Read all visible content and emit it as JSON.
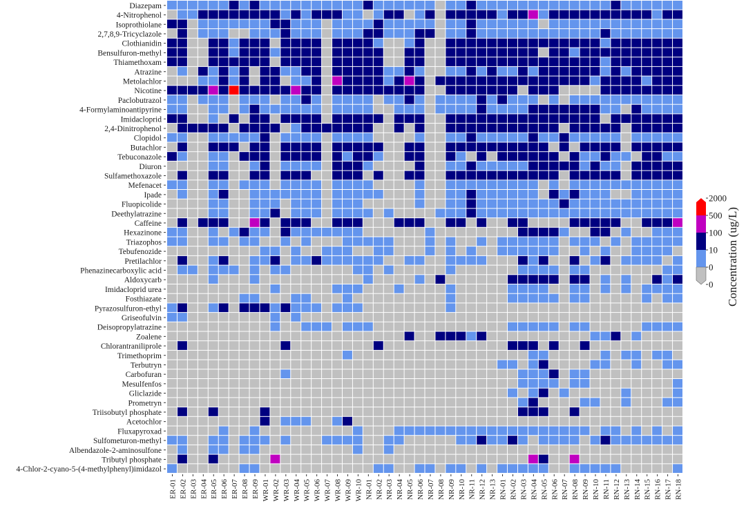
{
  "chart_data": {
    "type": "heatmap",
    "title": "",
    "xlabel": "",
    "ylabel": "",
    "encoding": "each row string gives one level per column: 0 = <=0 (gray), 1 = 0-10, 2 = 10-100, 3 = 100-500, 4 = 500-2000",
    "columns": [
      "ER-01",
      "ER-02",
      "ER-03",
      "ER-04",
      "ER-05",
      "ER-06",
      "ER-07",
      "ER-08",
      "ER-09",
      "WR-01",
      "WR-02",
      "WR-03",
      "WR-04",
      "WR-05",
      "WR-06",
      "WR-07",
      "WR-08",
      "WR-09",
      "WR-10",
      "NR-01",
      "NR-02",
      "NR-03",
      "NR-04",
      "NR-05",
      "NR-06",
      "NR-07",
      "NR-08",
      "NR-09",
      "NR-10",
      "NR-11",
      "NR-12",
      "NR-13",
      "RN-01",
      "RN-02",
      "RN-03",
      "RN-04",
      "RN-05",
      "RN-06",
      "RN-07",
      "RN-08",
      "RN-09",
      "RN-10",
      "RN-11",
      "RN-12",
      "RN-13",
      "RN-14",
      "RN-15",
      "RN-16",
      "RN-17",
      "RN-18"
    ],
    "rows": [
      {
        "name": "Diazepam",
        "levels": "11111121211111111112111111011211111111111112111111"
      },
      {
        "name": "4-Nitrophenol",
        "levels": "01122222222121222110122012022222122312222222222122"
      },
      {
        "name": "Isoprothiolane",
        "levels": "22011111112211101111211111011211111101111111111111"
      },
      {
        "name": "2,7,8,9-Tricyclazole",
        "levels": "02011100111211101112211122011211111111111121111111"
      },
      {
        "name": "Clothianidin",
        "levels": "22002212220222202222100120022222222222222212222222"
      },
      {
        "name": "Bensulfuron-methyl",
        "levels": "22002212221222202222200220022222222202212222222222"
      },
      {
        "name": "Thiamethoxam",
        "levels": "22002222220222202222200220022222222222222212222222"
      },
      {
        "name": "Atrazine",
        "levels": "01021212022112202222211210011212112122222212122222"
      },
      {
        "name": "Metolachlor",
        "levels": "00011212022011203222212320222222222222222122221222"
      },
      {
        "name": "Nicotine",
        "levels": "22223242222232202222222220022222220222000022222222"
      },
      {
        "name": "Paclobutrazol",
        "levels": "11011101110112101111011210111121211101011111111111"
      },
      {
        "name": "4-Formylaminoantipyrine",
        "levels": "11001101211111101111001110111121111222222211021111"
      },
      {
        "name": "Imidacloprid",
        "levels": "22001020220222202222202220022222222222222202222222"
      },
      {
        "name": "2,4-Dinitrophenol",
        "levels": "02222202222012222222002020022222222222022222022222"
      },
      {
        "name": "Clopidol",
        "levels": "11001111120111101111000010011211111211211111011111"
      },
      {
        "name": "Butachlor",
        "levels": "02002220220222202222200220022222222220202222022222"
      },
      {
        "name": "Tebuconazole",
        "levels": "21001102220222202122100220021020222222021121102211"
      },
      {
        "name": "Diuron",
        "levels": "00001100120111102221000020011211111222221211022222"
      },
      {
        "name": "Sulfamethoxazole",
        "levels": "02002200220222002220200220022222222222022222022222"
      },
      {
        "name": "Mefenacet",
        "levels": "11001101110111101111000010011111111101011111111111"
      },
      {
        "name": "Ipade",
        "levels": "01001200111111101111100010011211111102121110011111"
      },
      {
        "name": "Fluopicolide",
        "levels": "00001100111011101110000010011211111111211111111111"
      },
      {
        "name": "Deethylatrazine",
        "levels": "00001100112011101111010000111211111111111111111111"
      },
      {
        "name": "Caffeine",
        "levels": "02022200320222002220002220022020022000022222002223"
      },
      {
        "name": "Hexazinone",
        "levels": "11001012110211111110000001000000002222100220100111"
      },
      {
        "name": "Triazophos",
        "levels": "11001101100101000111110001010010111111011101011111"
      },
      {
        "name": "Tebufenozide",
        "levels": "00000000011010011100110001010100111111001010011110"
      },
      {
        "name": "Pretilachlor",
        "levels": "02001200112011211111100110011110002120020120111101"
      },
      {
        "name": "Phenazinecarboxylic acid",
        "levels": "01101110101100000011010000010000001111011000000011"
      },
      {
        "name": "Aldoxycarb",
        "levels": "00001000100000000001000010200000022222022010100212"
      },
      {
        "name": "Imidacloprid urea",
        "levels": "00000000001000001110001000010000011110011010101111"
      },
      {
        "name": "Fosthiazate",
        "levels": "00000001100011000100000000010000011111011000001011"
      },
      {
        "name": "Pyrazosulfuron-ethyl",
        "levels": "12001202221211101110000000010000000000000000000000"
      },
      {
        "name": "Griseofulvin",
        "levels": "11000000001010000000000000000000000000000000000000"
      },
      {
        "name": "Deisopropylatrazine",
        "levels": "00000000001001110111000000000000011111011000001111"
      },
      {
        "name": "Zoalene",
        "levels": "00000000000000000000000200222120000000000112010000"
      },
      {
        "name": "Chlorantraniliprole",
        "levels": "02000000000200000000200000000000022202002000000000"
      },
      {
        "name": "Trimethoprim",
        "levels": "00000000000000000100000000000000000110000010110110"
      },
      {
        "name": "Terbutryn",
        "levels": "00000000000000000000000000000000110120000110010011"
      },
      {
        "name": "Carbofuran",
        "levels": "00000000000100000000000000000000001112011000000000"
      },
      {
        "name": "Mesulfenfos",
        "levels": "00000000000000000000000000000000001111011000000001"
      },
      {
        "name": "Gliclazide",
        "levels": "00000000000000000000000000000000010120100000100001"
      },
      {
        "name": "Prometryn",
        "levels": "00000000000000000000000000000000001200001100100011"
      },
      {
        "name": "Triisobutyl phosphate",
        "levels": "02002000020000000000000000000000002220020000000000"
      },
      {
        "name": "Acetochlor",
        "levels": "00000000020111001200000000000000000000000000000000"
      },
      {
        "name": "Fluxapyroxad",
        "levels": "00000100100000000010001111111111111111111011010101"
      },
      {
        "name": "Sulfometuron-methyl",
        "levels": "11001101110100011110011000001121121011110121111111"
      },
      {
        "name": "Albendazole-2-aminosulfone",
        "levels": "01001101100000000010010000000000000000000000000000"
      },
      {
        "name": "Tributyl phosphate",
        "levels": "02002000003000000000000000000000000320030000000000"
      },
      {
        "name": "4-Chlor-2-cyano-5-(4-methylphenyl)imidazol",
        "levels": "10000001100000000000110011011010111110011111000001"
      }
    ],
    "legend": {
      "title": "Concentration (ug/L)",
      "placement": "right",
      "ticks": [
        "2000",
        "500",
        "100",
        "10",
        "0",
        "0"
      ],
      "bins": [
        {
          "range": "500-2000",
          "color": "#ff0000"
        },
        {
          "range": "100-500",
          "color": "#c000c0"
        },
        {
          "range": "10-100",
          "color": "#000080"
        },
        {
          "range": "0-10",
          "color": "#6495ed"
        },
        {
          "range": "<=0",
          "color": "#c0c0c0"
        }
      ]
    }
  },
  "colors": {
    "level_0": "#c0c0c0",
    "level_1": "#6495ed",
    "level_2": "#000080",
    "level_3": "#c000c0",
    "level_4": "#ff0000",
    "grid_line": "#ffffff"
  }
}
